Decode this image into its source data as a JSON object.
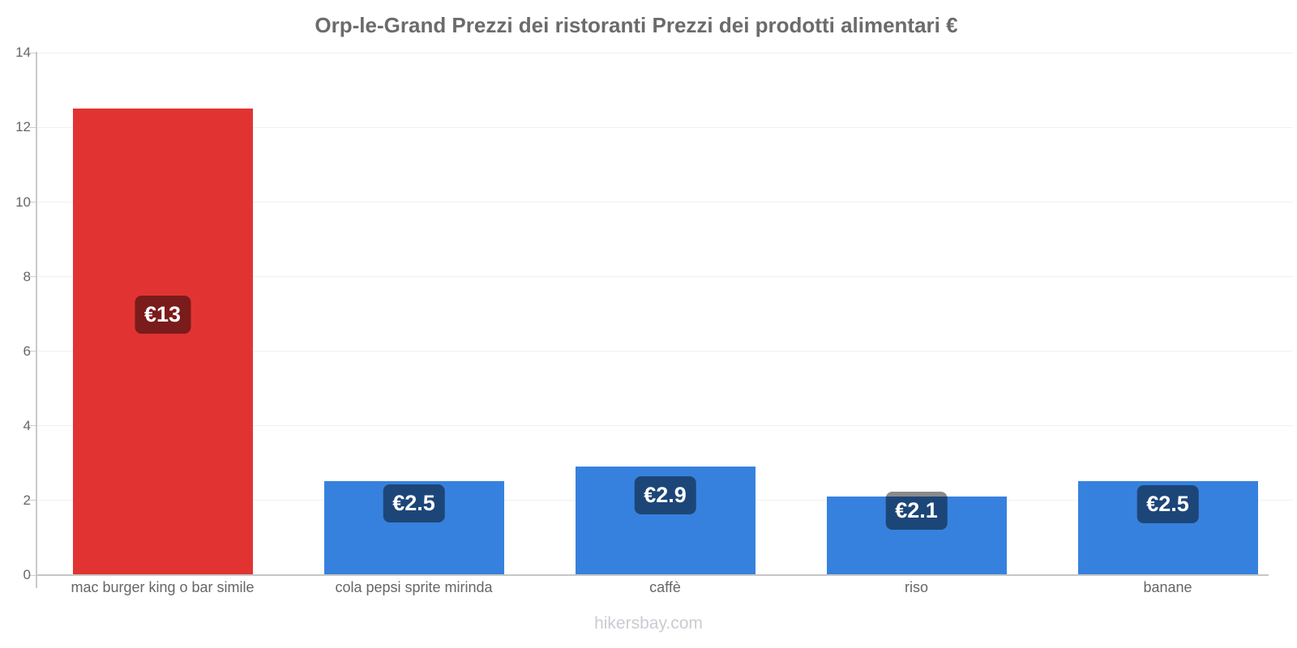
{
  "footer": {
    "text": "hikersbay.com"
  },
  "chart_data": {
    "type": "bar",
    "title": "Orp-le-Grand Prezzi dei ristoranti Prezzi dei prodotti alimentari €",
    "xlabel": "",
    "ylabel": "",
    "ylim": [
      0,
      14
    ],
    "yticks": [
      0,
      2,
      4,
      6,
      8,
      10,
      12,
      14
    ],
    "grid": true,
    "legend": false,
    "currency": "EUR",
    "categories": [
      "mac burger king o bar simile",
      "cola pepsi sprite mirinda",
      "caffè",
      "riso",
      "banane"
    ],
    "values": [
      12.5,
      2.5,
      2.9,
      2.1,
      2.5
    ],
    "value_labels": [
      "€13",
      "€2.5",
      "€2.9",
      "€2.1",
      "€2.5"
    ],
    "bar_colors": [
      "#e13432",
      "#3781de",
      "#3781de",
      "#3781de",
      "#3781de"
    ],
    "badge_color": "rgba(0,0,0,0.46)"
  }
}
